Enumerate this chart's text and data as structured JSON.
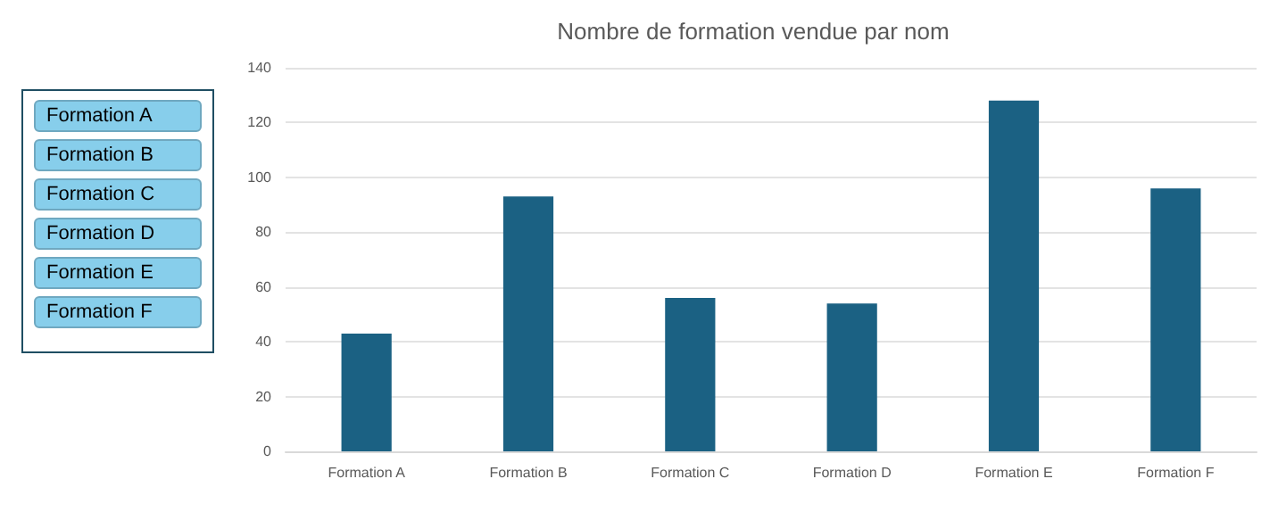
{
  "chart_data": [
    {
      "type": "bar",
      "title": "Nombre de formation vendue par nom",
      "categories": [
        "Formation A",
        "Formation B",
        "Formation C",
        "Formation D",
        "Formation E",
        "Formation F"
      ],
      "values": [
        43,
        93,
        56,
        54,
        128,
        96
      ],
      "color": "#1b6183",
      "ylim": [
        0,
        140
      ],
      "yticks": [
        0,
        20,
        40,
        60,
        80,
        100,
        120,
        140
      ],
      "grid": "y"
    },
    {
      "type": "other",
      "annotations": [
        "Formation A",
        "Formation B",
        "Formation C",
        "Formation D",
        "Formation E",
        "Formation F"
      ]
    }
  ]
}
